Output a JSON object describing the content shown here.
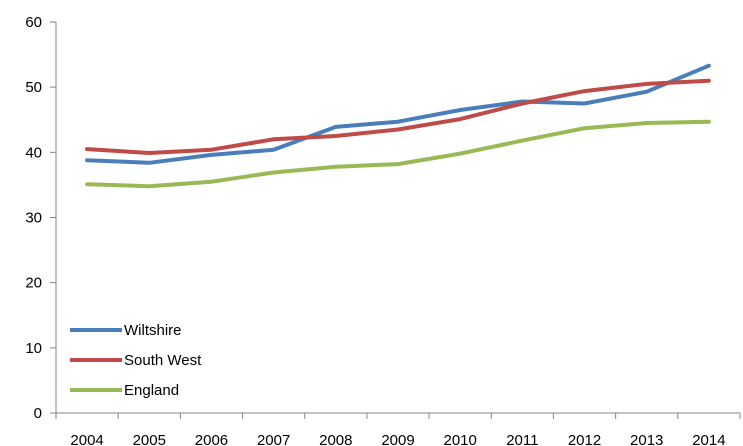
{
  "chart_data": {
    "type": "line",
    "title": "",
    "xlabel": "",
    "ylabel": "",
    "categories": [
      "2004",
      "2005",
      "2006",
      "2007",
      "2008",
      "2009",
      "2010",
      "2011",
      "2012",
      "2013",
      "2014"
    ],
    "ylim": [
      0,
      60
    ],
    "yticks": [
      0,
      10,
      20,
      30,
      40,
      50,
      60
    ],
    "grid": false,
    "legend_position": "bottom-left",
    "series": [
      {
        "name": "Wiltshire",
        "color": "#4a7ebb",
        "values": [
          38.8,
          38.4,
          39.6,
          40.4,
          43.9,
          44.7,
          46.5,
          47.8,
          47.5,
          49.3,
          53.3
        ]
      },
      {
        "name": "South West",
        "color": "#be4b48",
        "values": [
          40.5,
          39.9,
          40.4,
          42.0,
          42.5,
          43.5,
          45.1,
          47.5,
          49.4,
          50.5,
          51.0
        ]
      },
      {
        "name": "England",
        "color": "#98b954",
        "values": [
          35.1,
          34.8,
          35.5,
          36.9,
          37.8,
          38.2,
          39.8,
          41.8,
          43.7,
          44.5,
          44.7
        ]
      }
    ]
  }
}
